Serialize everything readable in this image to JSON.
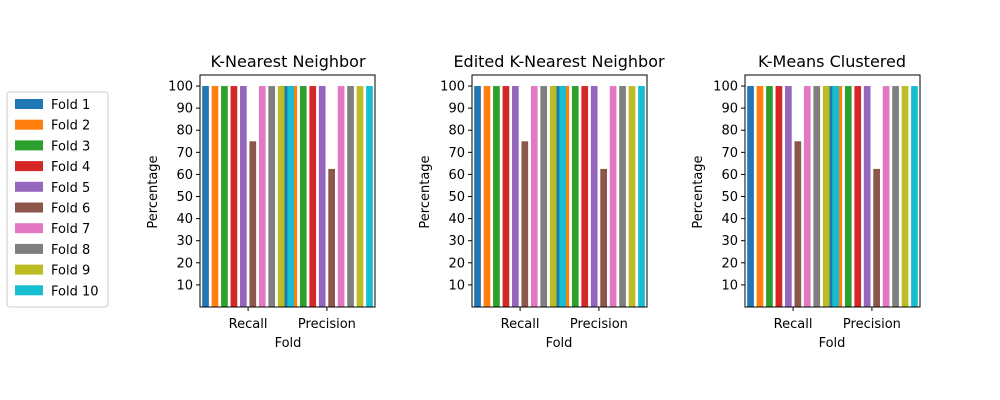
{
  "chart_data": [
    {
      "type": "bar",
      "title": "K-Nearest Neighbor",
      "xlabel": "Fold",
      "ylabel": "Percentage",
      "categories": [
        "Recall",
        "Precision"
      ],
      "yticks": [
        10,
        20,
        30,
        40,
        50,
        60,
        70,
        80,
        90,
        100
      ],
      "ylim": [
        0,
        105
      ],
      "series": [
        {
          "name": "Fold 1",
          "values": [
            100,
            100
          ]
        },
        {
          "name": "Fold 2",
          "values": [
            100,
            100
          ]
        },
        {
          "name": "Fold 3",
          "values": [
            100,
            100
          ]
        },
        {
          "name": "Fold 4",
          "values": [
            100,
            100
          ]
        },
        {
          "name": "Fold 5",
          "values": [
            100,
            100
          ]
        },
        {
          "name": "Fold 6",
          "values": [
            75,
            62.5
          ]
        },
        {
          "name": "Fold 7",
          "values": [
            100,
            100
          ]
        },
        {
          "name": "Fold 8",
          "values": [
            100,
            100
          ]
        },
        {
          "name": "Fold 9",
          "values": [
            100,
            100
          ]
        },
        {
          "name": "Fold 10",
          "values": [
            100,
            100
          ]
        }
      ]
    },
    {
      "type": "bar",
      "title": "Edited K-Nearest Neighbor",
      "xlabel": "Fold",
      "ylabel": "Percentage",
      "categories": [
        "Recall",
        "Precision"
      ],
      "yticks": [
        10,
        20,
        30,
        40,
        50,
        60,
        70,
        80,
        90,
        100
      ],
      "ylim": [
        0,
        105
      ],
      "series": [
        {
          "name": "Fold 1",
          "values": [
            100,
            100
          ]
        },
        {
          "name": "Fold 2",
          "values": [
            100,
            100
          ]
        },
        {
          "name": "Fold 3",
          "values": [
            100,
            100
          ]
        },
        {
          "name": "Fold 4",
          "values": [
            100,
            100
          ]
        },
        {
          "name": "Fold 5",
          "values": [
            100,
            100
          ]
        },
        {
          "name": "Fold 6",
          "values": [
            75,
            62.5
          ]
        },
        {
          "name": "Fold 7",
          "values": [
            100,
            100
          ]
        },
        {
          "name": "Fold 8",
          "values": [
            100,
            100
          ]
        },
        {
          "name": "Fold 9",
          "values": [
            100,
            100
          ]
        },
        {
          "name": "Fold 10",
          "values": [
            100,
            100
          ]
        }
      ]
    },
    {
      "type": "bar",
      "title": "K-Means Clustered",
      "xlabel": "Fold",
      "ylabel": "Percentage",
      "categories": [
        "Recall",
        "Precision"
      ],
      "yticks": [
        10,
        20,
        30,
        40,
        50,
        60,
        70,
        80,
        90,
        100
      ],
      "ylim": [
        0,
        105
      ],
      "series": [
        {
          "name": "Fold 1",
          "values": [
            100,
            100
          ]
        },
        {
          "name": "Fold 2",
          "values": [
            100,
            100
          ]
        },
        {
          "name": "Fold 3",
          "values": [
            100,
            100
          ]
        },
        {
          "name": "Fold 4",
          "values": [
            100,
            100
          ]
        },
        {
          "name": "Fold 5",
          "values": [
            100,
            100
          ]
        },
        {
          "name": "Fold 6",
          "values": [
            75,
            62.5
          ]
        },
        {
          "name": "Fold 7",
          "values": [
            100,
            100
          ]
        },
        {
          "name": "Fold 8",
          "values": [
            100,
            100
          ]
        },
        {
          "name": "Fold 9",
          "values": [
            100,
            100
          ]
        },
        {
          "name": "Fold 10",
          "values": [
            100,
            100
          ]
        }
      ]
    }
  ],
  "legend": {
    "placement": "left",
    "entries": [
      {
        "label": "Fold 1",
        "color": "#1f77b4"
      },
      {
        "label": "Fold 2",
        "color": "#ff7f0e"
      },
      {
        "label": "Fold 3",
        "color": "#2ca02c"
      },
      {
        "label": "Fold 4",
        "color": "#d62728"
      },
      {
        "label": "Fold 5",
        "color": "#9467bd"
      },
      {
        "label": "Fold 6",
        "color": "#8c564b"
      },
      {
        "label": "Fold 7",
        "color": "#e377c2"
      },
      {
        "label": "Fold 8",
        "color": "#7f7f7f"
      },
      {
        "label": "Fold 9",
        "color": "#bcbd22"
      },
      {
        "label": "Fold 10",
        "color": "#17becf"
      }
    ]
  }
}
